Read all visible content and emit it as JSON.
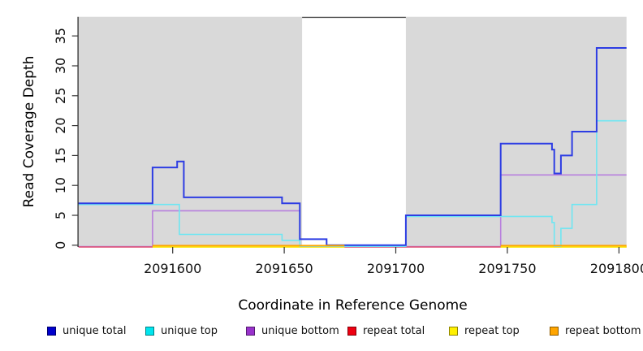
{
  "chart_data": {
    "type": "line",
    "step": true,
    "title": "",
    "xlabel": "Coordinate in Reference Genome",
    "ylabel": "Read Coverage Depth",
    "xlim": [
      2091557.8,
      2091803.4
    ],
    "ylim": [
      -0.3,
      38.2
    ],
    "xticks": [
      2091600,
      2091650,
      2091700,
      2091750,
      2091800
    ],
    "yticks": [
      0,
      5,
      10,
      15,
      20,
      25,
      30,
      35
    ],
    "grid": false,
    "plot_background": "#ffffff",
    "covered_regions": [
      {
        "from": 2091557.8,
        "to": 2091658,
        "color": "#d9d9d9"
      },
      {
        "from": 2091704.5,
        "to": 2091803.4,
        "color": "#d9d9d9"
      }
    ],
    "gap_top_line": {
      "from": 2091658,
      "to": 2091704.5,
      "color": "#555555"
    },
    "series": [
      {
        "name": "unique bottom",
        "color": "#b87fdd",
        "width": 1.6,
        "offset": 1.8,
        "segments": [
          [
            [
              2091557.8,
              0
            ],
            [
              2091591,
              6
            ],
            [
              2091657,
              0
            ],
            [
              2091747,
              12
            ],
            [
              2091803.4,
              12
            ]
          ]
        ]
      },
      {
        "name": "repeat total",
        "color": "#dd4a6e",
        "width": 1.6,
        "offset": 2.2,
        "segments": [
          [
            [
              2091557.8,
              0
            ],
            [
              2091803.4,
              0
            ]
          ]
        ]
      },
      {
        "name": "repeat top",
        "color": "#ffff00",
        "width": 1.6,
        "offset": 2.2,
        "segments": [
          [
            [
              2091591,
              0
            ],
            [
              2091677,
              0
            ]
          ],
          [
            [
              2091747,
              0
            ],
            [
              2091803.4,
              0
            ]
          ]
        ]
      },
      {
        "name": "unique top",
        "color": "#6ee6f2",
        "width": 1.6,
        "offset": 1.4,
        "segments": [
          [
            [
              2091557.8,
              7
            ],
            [
              2091603,
              2
            ],
            [
              2091649,
              1
            ],
            [
              2091657,
              0
            ],
            [
              2091704.5,
              5
            ],
            [
              2091770,
              4
            ],
            [
              2091771,
              0
            ],
            [
              2091774,
              3
            ],
            [
              2091779,
              7
            ],
            [
              2091790,
              21
            ],
            [
              2091803.4,
              21
            ]
          ]
        ]
      },
      {
        "name": "unique total",
        "color": "#2d3de3",
        "width": 2,
        "offset": 0,
        "segments": [
          [
            [
              2091557.8,
              7
            ],
            [
              2091591,
              13
            ],
            [
              2091602,
              14
            ],
            [
              2091605,
              8
            ],
            [
              2091649,
              7
            ],
            [
              2091657,
              1
            ],
            [
              2091669,
              0
            ],
            [
              2091704.5,
              5
            ],
            [
              2091747,
              17
            ],
            [
              2091770,
              16
            ],
            [
              2091771,
              12
            ],
            [
              2091774,
              15
            ],
            [
              2091779,
              19
            ],
            [
              2091790,
              33
            ],
            [
              2091803.4,
              33
            ]
          ]
        ]
      },
      {
        "name": "repeat bottom",
        "color": "#ffa500",
        "width": 2,
        "offset": 0.6,
        "segments": [
          [
            [
              2091591,
              0
            ],
            [
              2091677,
              0
            ]
          ],
          [
            [
              2091747,
              0
            ],
            [
              2091803.4,
              0
            ]
          ]
        ]
      }
    ],
    "legend": {
      "position": "bottom",
      "items": [
        {
          "label": "unique total",
          "color": "#0000cd"
        },
        {
          "label": "unique top",
          "color": "#00e5ee"
        },
        {
          "label": "unique bottom",
          "color": "#9932cc"
        },
        {
          "label": "repeat total",
          "color": "#ee0011"
        },
        {
          "label": "repeat top",
          "color": "#fff000"
        },
        {
          "label": "repeat bottom",
          "color": "#ffa500"
        }
      ]
    }
  }
}
